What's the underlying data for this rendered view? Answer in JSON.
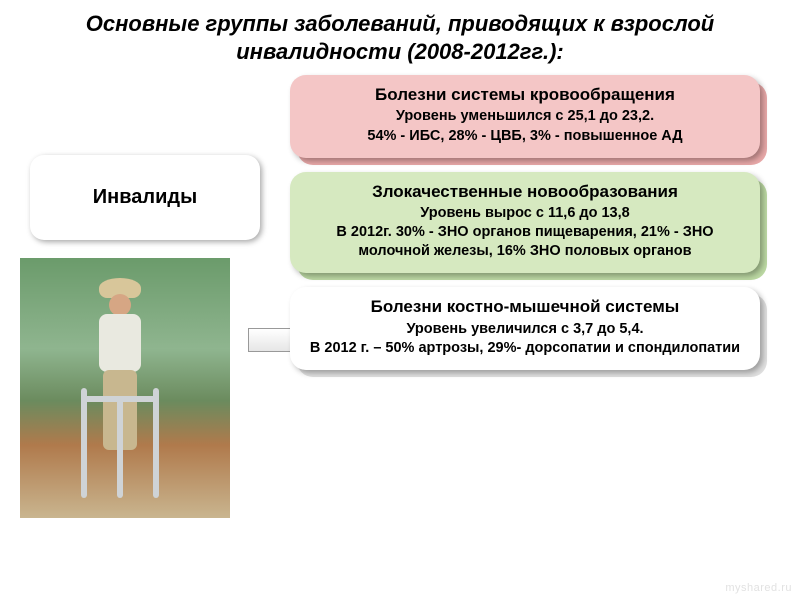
{
  "title": "Основные группы заболеваний, приводящих к взрослой инвалидности (2008-2012гг.):",
  "left": {
    "label": "Инвалиды"
  },
  "cards": [
    {
      "title": "Болезни системы кровообращения",
      "body": "Уровень уменьшился с 25,1 до 23,2.\n54% - ИБС, 28% - ЦВБ, 3% - повышенное АД",
      "bg": "#f4c6c6",
      "shadow": "#e8a8a8"
    },
    {
      "title": "Злокачественные новообразования",
      "body": "Уровень вырос с 11,6 до 13,8\nВ 2012г. 30% - ЗНО органов пищеварения, 21% - ЗНО молочной железы, 16% ЗНО половых органов",
      "bg": "#d6e9c0",
      "shadow": "#bcd9a3"
    },
    {
      "title": "Болезни костно-мышечной системы",
      "body": "Уровень увеличился с 3,7 до 5,4.\nВ 2012 г. – 50%  артрозы, 29%- дорсопатии и спондилопатии",
      "bg": "#ffffff",
      "shadow": "#e0e0e0"
    }
  ],
  "watermark": "myshared.ru",
  "styling": {
    "title_fontsize": 22,
    "title_italic": true,
    "card_title_fontsize": 17,
    "card_body_fontsize": 14.5,
    "card_border_radius": 16,
    "page_bg": "#ffffff",
    "arrow_fill": "#e6e6e6"
  }
}
